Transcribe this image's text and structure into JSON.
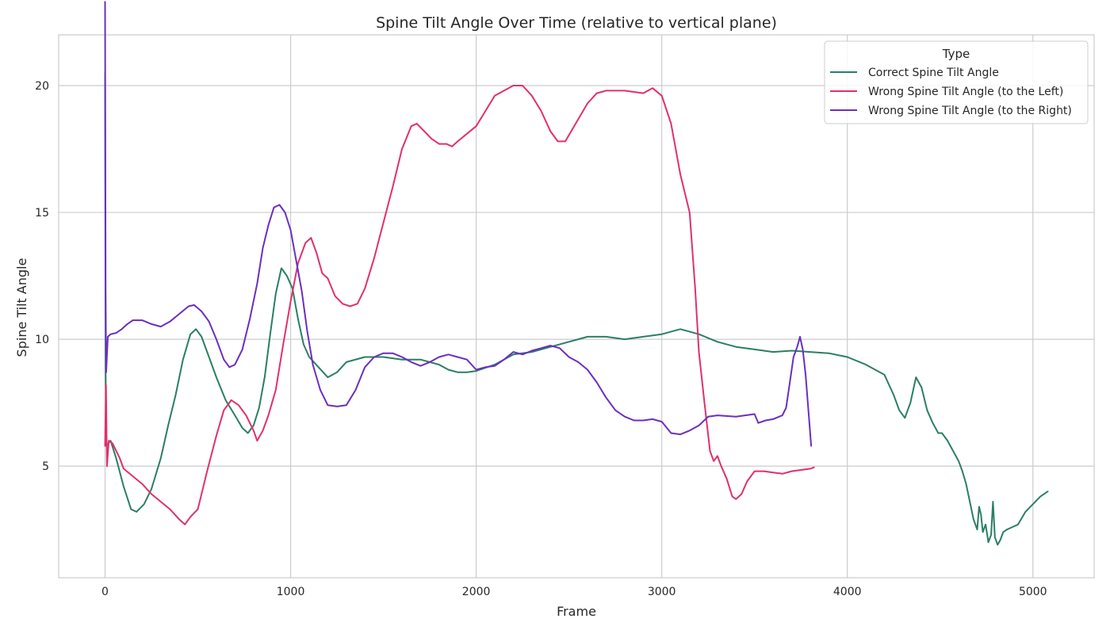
{
  "chart_data": {
    "type": "line",
    "title": "Spine Tilt Angle Over Time (relative to vertical plane)",
    "xlabel": "Frame",
    "ylabel": "Spine Tilt Angle",
    "xlim": [
      -250,
      5330
    ],
    "ylim": [
      0.6,
      22.0
    ],
    "xticks": [
      0,
      1000,
      2000,
      3000,
      4000,
      5000
    ],
    "yticks": [
      5,
      10,
      15,
      20
    ],
    "xtick_labels": [
      "0",
      "1000",
      "2000",
      "3000",
      "4000",
      "5000"
    ],
    "ytick_labels": [
      "5",
      "10",
      "15",
      "20"
    ],
    "grid": true,
    "legend": {
      "title": "Type",
      "position": "top-right"
    },
    "series": [
      {
        "name": "Correct Spine Tilt Angle",
        "color": "#2a7f62",
        "points": [
          [
            0,
            20.5
          ],
          [
            3,
            9
          ],
          [
            6,
            5.8
          ],
          [
            30,
            6
          ],
          [
            60,
            5.3
          ],
          [
            100,
            4.2
          ],
          [
            140,
            3.3
          ],
          [
            170,
            3.2
          ],
          [
            210,
            3.5
          ],
          [
            250,
            4.1
          ],
          [
            300,
            5.3
          ],
          [
            340,
            6.6
          ],
          [
            380,
            7.8
          ],
          [
            420,
            9.2
          ],
          [
            460,
            10.2
          ],
          [
            490,
            10.4
          ],
          [
            520,
            10.1
          ],
          [
            560,
            9.3
          ],
          [
            600,
            8.5
          ],
          [
            650,
            7.6
          ],
          [
            700,
            7.0
          ],
          [
            740,
            6.5
          ],
          [
            770,
            6.3
          ],
          [
            800,
            6.6
          ],
          [
            830,
            7.3
          ],
          [
            860,
            8.5
          ],
          [
            890,
            10.2
          ],
          [
            920,
            11.8
          ],
          [
            950,
            12.8
          ],
          [
            980,
            12.5
          ],
          [
            1010,
            12.0
          ],
          [
            1040,
            10.8
          ],
          [
            1070,
            9.8
          ],
          [
            1100,
            9.3
          ],
          [
            1150,
            8.9
          ],
          [
            1200,
            8.5
          ],
          [
            1250,
            8.7
          ],
          [
            1300,
            9.1
          ],
          [
            1400,
            9.3
          ],
          [
            1500,
            9.3
          ],
          [
            1600,
            9.2
          ],
          [
            1700,
            9.2
          ],
          [
            1800,
            9.0
          ],
          [
            1850,
            8.8
          ],
          [
            1900,
            8.7
          ],
          [
            1950,
            8.7
          ],
          [
            2000,
            8.75
          ],
          [
            2100,
            9.0
          ],
          [
            2200,
            9.4
          ],
          [
            2300,
            9.5
          ],
          [
            2400,
            9.7
          ],
          [
            2500,
            9.9
          ],
          [
            2550,
            10.0
          ],
          [
            2600,
            10.1
          ],
          [
            2700,
            10.1
          ],
          [
            2800,
            10.0
          ],
          [
            2900,
            10.1
          ],
          [
            3000,
            10.2
          ],
          [
            3100,
            10.4
          ],
          [
            3200,
            10.2
          ],
          [
            3300,
            9.9
          ],
          [
            3400,
            9.7
          ],
          [
            3500,
            9.6
          ],
          [
            3600,
            9.5
          ],
          [
            3700,
            9.55
          ],
          [
            3800,
            9.5
          ],
          [
            3900,
            9.45
          ],
          [
            4000,
            9.3
          ],
          [
            4100,
            9.0
          ],
          [
            4200,
            8.6
          ],
          [
            4250,
            7.8
          ],
          [
            4280,
            7.2
          ],
          [
            4310,
            6.9
          ],
          [
            4340,
            7.5
          ],
          [
            4370,
            8.5
          ],
          [
            4400,
            8.1
          ],
          [
            4430,
            7.2
          ],
          [
            4460,
            6.7
          ],
          [
            4490,
            6.3
          ],
          [
            4510,
            6.3
          ],
          [
            4540,
            6.0
          ],
          [
            4570,
            5.6
          ],
          [
            4600,
            5.2
          ],
          [
            4620,
            4.8
          ],
          [
            4640,
            4.3
          ],
          [
            4660,
            3.6
          ],
          [
            4680,
            2.9
          ],
          [
            4700,
            2.5
          ],
          [
            4710,
            3.4
          ],
          [
            4720,
            3.1
          ],
          [
            4730,
            2.4
          ],
          [
            4745,
            2.7
          ],
          [
            4760,
            2.0
          ],
          [
            4775,
            2.3
          ],
          [
            4785,
            3.6
          ],
          [
            4795,
            2.2
          ],
          [
            4810,
            1.9
          ],
          [
            4825,
            2.1
          ],
          [
            4840,
            2.4
          ],
          [
            4860,
            2.5
          ],
          [
            4890,
            2.6
          ],
          [
            4920,
            2.7
          ],
          [
            4960,
            3.2
          ],
          [
            5000,
            3.5
          ],
          [
            5040,
            3.8
          ],
          [
            5080,
            4.0
          ]
        ]
      },
      {
        "name": "Wrong Spine Tilt Angle (to the Left)",
        "color": "#e0306e",
        "points": [
          [
            0,
            5.8
          ],
          [
            5,
            8.2
          ],
          [
            10,
            5.0
          ],
          [
            20,
            6.0
          ],
          [
            40,
            5.9
          ],
          [
            60,
            5.6
          ],
          [
            80,
            5.3
          ],
          [
            100,
            4.9
          ],
          [
            150,
            4.6
          ],
          [
            200,
            4.3
          ],
          [
            250,
            3.9
          ],
          [
            300,
            3.6
          ],
          [
            350,
            3.3
          ],
          [
            400,
            2.9
          ],
          [
            430,
            2.7
          ],
          [
            460,
            3.0
          ],
          [
            500,
            3.3
          ],
          [
            550,
            4.8
          ],
          [
            600,
            6.2
          ],
          [
            640,
            7.2
          ],
          [
            680,
            7.6
          ],
          [
            720,
            7.4
          ],
          [
            760,
            7.0
          ],
          [
            800,
            6.4
          ],
          [
            820,
            6.0
          ],
          [
            850,
            6.4
          ],
          [
            880,
            7.0
          ],
          [
            920,
            8.0
          ],
          [
            960,
            9.8
          ],
          [
            1000,
            11.5
          ],
          [
            1040,
            13.0
          ],
          [
            1080,
            13.8
          ],
          [
            1110,
            14.0
          ],
          [
            1140,
            13.4
          ],
          [
            1170,
            12.6
          ],
          [
            1200,
            12.4
          ],
          [
            1240,
            11.7
          ],
          [
            1280,
            11.4
          ],
          [
            1320,
            11.3
          ],
          [
            1360,
            11.4
          ],
          [
            1400,
            12.0
          ],
          [
            1450,
            13.2
          ],
          [
            1500,
            14.6
          ],
          [
            1550,
            16.0
          ],
          [
            1600,
            17.5
          ],
          [
            1650,
            18.4
          ],
          [
            1680,
            18.5
          ],
          [
            1720,
            18.2
          ],
          [
            1760,
            17.9
          ],
          [
            1800,
            17.7
          ],
          [
            1840,
            17.7
          ],
          [
            1870,
            17.6
          ],
          [
            1900,
            17.8
          ],
          [
            1950,
            18.1
          ],
          [
            2000,
            18.4
          ],
          [
            2050,
            19.0
          ],
          [
            2100,
            19.6
          ],
          [
            2150,
            19.8
          ],
          [
            2200,
            20.0
          ],
          [
            2250,
            20.0
          ],
          [
            2300,
            19.6
          ],
          [
            2350,
            19.0
          ],
          [
            2400,
            18.2
          ],
          [
            2440,
            17.8
          ],
          [
            2480,
            17.8
          ],
          [
            2520,
            18.3
          ],
          [
            2560,
            18.8
          ],
          [
            2600,
            19.3
          ],
          [
            2650,
            19.7
          ],
          [
            2700,
            19.8
          ],
          [
            2800,
            19.8
          ],
          [
            2900,
            19.7
          ],
          [
            2950,
            19.9
          ],
          [
            3000,
            19.6
          ],
          [
            3050,
            18.5
          ],
          [
            3100,
            16.5
          ],
          [
            3150,
            15.0
          ],
          [
            3180,
            12.0
          ],
          [
            3200,
            9.5
          ],
          [
            3230,
            7.5
          ],
          [
            3260,
            5.6
          ],
          [
            3280,
            5.2
          ],
          [
            3300,
            5.4
          ],
          [
            3320,
            5.0
          ],
          [
            3350,
            4.5
          ],
          [
            3380,
            3.8
          ],
          [
            3400,
            3.7
          ],
          [
            3430,
            3.9
          ],
          [
            3460,
            4.4
          ],
          [
            3500,
            4.8
          ],
          [
            3550,
            4.8
          ],
          [
            3600,
            4.75
          ],
          [
            3650,
            4.7
          ],
          [
            3700,
            4.8
          ],
          [
            3750,
            4.85
          ],
          [
            3800,
            4.9
          ],
          [
            3820,
            4.95
          ]
        ]
      },
      {
        "name": "Wrong Spine Tilt Angle (to the Right)",
        "color": "#6a2fbf",
        "points": [
          [
            0,
            23.3
          ],
          [
            3,
            12
          ],
          [
            6,
            8.7
          ],
          [
            15,
            10.1
          ],
          [
            30,
            10.2
          ],
          [
            60,
            10.25
          ],
          [
            90,
            10.4
          ],
          [
            120,
            10.6
          ],
          [
            150,
            10.75
          ],
          [
            200,
            10.75
          ],
          [
            250,
            10.6
          ],
          [
            300,
            10.5
          ],
          [
            350,
            10.7
          ],
          [
            400,
            11.0
          ],
          [
            450,
            11.3
          ],
          [
            480,
            11.35
          ],
          [
            520,
            11.1
          ],
          [
            560,
            10.7
          ],
          [
            600,
            10.0
          ],
          [
            640,
            9.2
          ],
          [
            670,
            8.9
          ],
          [
            700,
            9.0
          ],
          [
            740,
            9.6
          ],
          [
            780,
            10.8
          ],
          [
            820,
            12.2
          ],
          [
            850,
            13.6
          ],
          [
            880,
            14.5
          ],
          [
            910,
            15.2
          ],
          [
            940,
            15.3
          ],
          [
            970,
            15.0
          ],
          [
            1000,
            14.3
          ],
          [
            1030,
            13.1
          ],
          [
            1060,
            11.9
          ],
          [
            1090,
            10.3
          ],
          [
            1120,
            9.0
          ],
          [
            1160,
            8.0
          ],
          [
            1200,
            7.4
          ],
          [
            1250,
            7.35
          ],
          [
            1300,
            7.4
          ],
          [
            1350,
            8.0
          ],
          [
            1400,
            8.9
          ],
          [
            1450,
            9.3
          ],
          [
            1500,
            9.45
          ],
          [
            1550,
            9.45
          ],
          [
            1600,
            9.3
          ],
          [
            1650,
            9.1
          ],
          [
            1700,
            8.95
          ],
          [
            1750,
            9.1
          ],
          [
            1800,
            9.3
          ],
          [
            1850,
            9.4
          ],
          [
            1900,
            9.3
          ],
          [
            1950,
            9.2
          ],
          [
            2000,
            8.8
          ],
          [
            2050,
            8.9
          ],
          [
            2100,
            8.95
          ],
          [
            2150,
            9.2
          ],
          [
            2200,
            9.5
          ],
          [
            2250,
            9.4
          ],
          [
            2300,
            9.55
          ],
          [
            2350,
            9.65
          ],
          [
            2400,
            9.75
          ],
          [
            2450,
            9.65
          ],
          [
            2500,
            9.3
          ],
          [
            2550,
            9.1
          ],
          [
            2600,
            8.8
          ],
          [
            2650,
            8.3
          ],
          [
            2700,
            7.7
          ],
          [
            2750,
            7.2
          ],
          [
            2800,
            6.95
          ],
          [
            2850,
            6.8
          ],
          [
            2900,
            6.8
          ],
          [
            2950,
            6.85
          ],
          [
            3000,
            6.75
          ],
          [
            3050,
            6.3
          ],
          [
            3100,
            6.25
          ],
          [
            3150,
            6.4
          ],
          [
            3200,
            6.6
          ],
          [
            3250,
            6.95
          ],
          [
            3300,
            7.0
          ],
          [
            3400,
            6.95
          ],
          [
            3450,
            7.0
          ],
          [
            3500,
            7.05
          ],
          [
            3520,
            6.7
          ],
          [
            3560,
            6.8
          ],
          [
            3600,
            6.85
          ],
          [
            3650,
            7.0
          ],
          [
            3670,
            7.3
          ],
          [
            3690,
            8.3
          ],
          [
            3710,
            9.3
          ],
          [
            3730,
            9.7
          ],
          [
            3745,
            10.1
          ],
          [
            3760,
            9.6
          ],
          [
            3775,
            8.6
          ],
          [
            3790,
            7.2
          ],
          [
            3805,
            5.8
          ]
        ]
      }
    ]
  }
}
